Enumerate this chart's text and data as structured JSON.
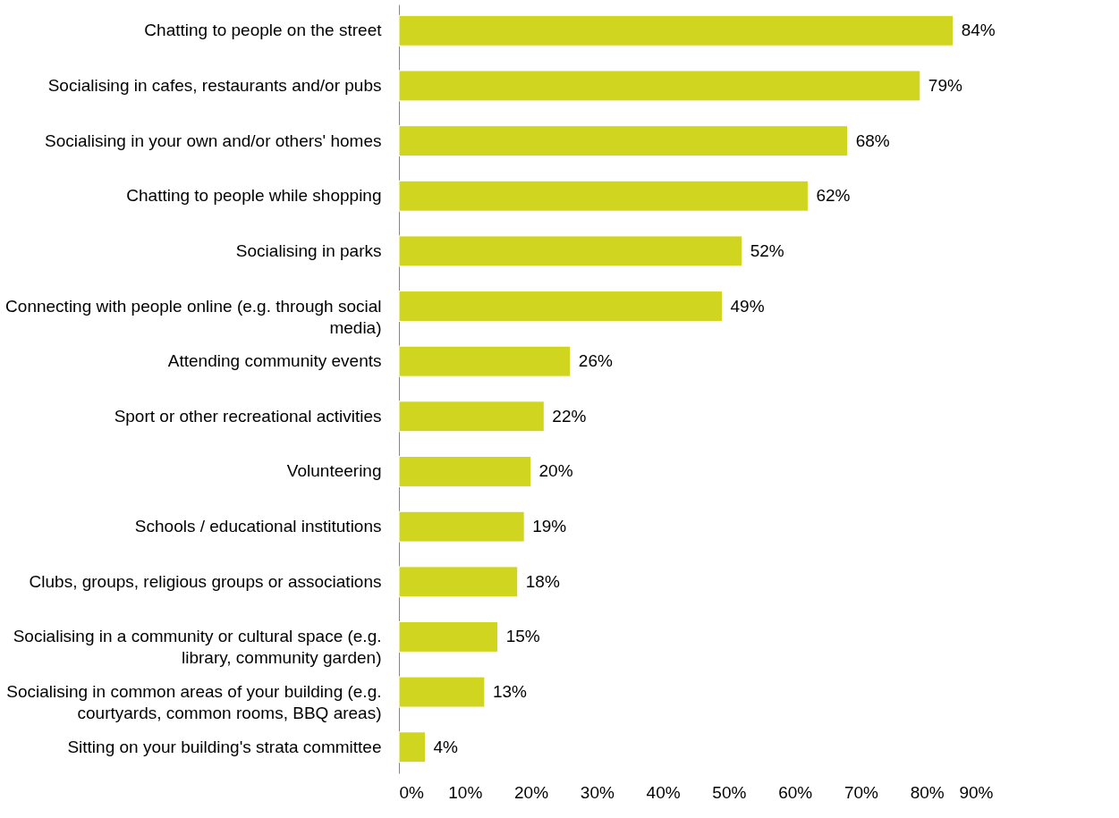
{
  "chart_data": {
    "type": "bar",
    "orientation": "horizontal",
    "categories": [
      "Chatting to people on the street",
      "Socialising in cafes, restaurants and/or pubs",
      "Socialising in your own and/or others' homes",
      "Chatting to people while shopping",
      "Socialising in parks",
      "Connecting with people online (e.g. through social media)",
      "Attending community events",
      "Sport or other recreational activities",
      "Volunteering",
      "Schools / educational institutions",
      "Clubs, groups, religious groups or associations",
      "Socialising in a community or cultural space (e.g. library, community garden)",
      "Socialising in common areas of your building (e.g. courtyards, common rooms, BBQ areas)",
      "Sitting on your building's strata committee"
    ],
    "values": [
      84,
      79,
      68,
      62,
      52,
      49,
      26,
      22,
      20,
      19,
      18,
      15,
      13,
      4
    ],
    "value_labels": [
      "84%",
      "79%",
      "68%",
      "62%",
      "52%",
      "49%",
      "26%",
      "22%",
      "20%",
      "19%",
      "18%",
      "15%",
      "13%",
      "4%"
    ],
    "color": "#d0d520",
    "xlim": [
      0,
      90
    ],
    "xticks": [
      {
        "value": 0,
        "label": "0%"
      },
      {
        "value": 10,
        "label": "10%"
      },
      {
        "value": 20,
        "label": "20%"
      },
      {
        "value": 30,
        "label": "30%"
      },
      {
        "value": 40,
        "label": "40%"
      },
      {
        "value": 50,
        "label": "50%"
      },
      {
        "value": 60,
        "label": "60%"
      },
      {
        "value": 70,
        "label": "70%"
      },
      {
        "value": 80,
        "label": "80%"
      },
      {
        "value": 90,
        "label": "90%"
      }
    ],
    "grid": false
  }
}
